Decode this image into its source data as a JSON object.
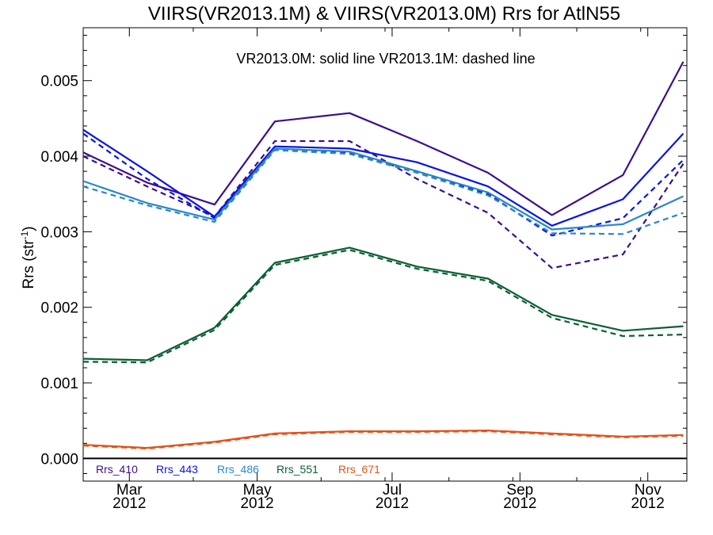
{
  "chart_data": {
    "type": "line",
    "title": "VIIRS(VR2013.1M) & VIIRS(VR2013.0M)  Rrs for AtlN55",
    "annotation": "VR2013.0M: solid line   VR2013.1M: dashed line",
    "ylabel": "Rrs (str",
    "ylabel_sup": "-1",
    "ylabel_close": ")",
    "xlabel": "",
    "xlim": [
      2012.12,
      2012.97
    ],
    "ylim": [
      -0.0003,
      0.0057
    ],
    "yticks": [
      {
        "v": 0.0,
        "label": "0.000"
      },
      {
        "v": 0.001,
        "label": "0.001"
      },
      {
        "v": 0.002,
        "label": "0.002"
      },
      {
        "v": 0.003,
        "label": "0.003"
      },
      {
        "v": 0.004,
        "label": "0.004"
      },
      {
        "v": 0.005,
        "label": "0.005"
      }
    ],
    "xticks": [
      {
        "v": 2012.185,
        "month": "Mar",
        "year": "2012"
      },
      {
        "v": 2012.365,
        "month": "May",
        "year": "2012"
      },
      {
        "v": 2012.555,
        "month": "Jul",
        "year": "2012"
      },
      {
        "v": 2012.735,
        "month": "Sep",
        "year": "2012"
      },
      {
        "v": 2012.915,
        "month": "Nov",
        "year": "2012"
      }
    ],
    "zero_line": 0.0,
    "x": [
      2012.12,
      2012.21,
      2012.305,
      2012.39,
      2012.495,
      2012.59,
      2012.69,
      2012.78,
      2012.88,
      2012.965
    ],
    "series": [
      {
        "name": "Rrs_410",
        "color": "#3b0f8c",
        "style": "solid",
        "values": [
          0.00405,
          0.00365,
          0.00336,
          0.00446,
          0.00457,
          0.0042,
          0.00378,
          0.00322,
          0.00375,
          0.00525
        ]
      },
      {
        "name": "Rrs_410",
        "color": "#3b0f8c",
        "style": "dashed",
        "values": [
          0.004,
          0.0036,
          0.0032,
          0.0042,
          0.0042,
          0.0037,
          0.00325,
          0.00252,
          0.0027,
          0.0039
        ]
      },
      {
        "name": "Rrs_443",
        "color": "#0a14e6",
        "style": "solid",
        "values": [
          0.00435,
          0.0038,
          0.0032,
          0.00413,
          0.0041,
          0.00392,
          0.0036,
          0.00308,
          0.00343,
          0.0043
        ]
      },
      {
        "name": "Rrs_443",
        "color": "#0a14e6",
        "style": "dashed",
        "values": [
          0.0043,
          0.0037,
          0.00318,
          0.0041,
          0.00405,
          0.0038,
          0.0035,
          0.00295,
          0.00318,
          0.00395
        ]
      },
      {
        "name": "Rrs_486",
        "color": "#2c86c8",
        "style": "solid",
        "values": [
          0.00367,
          0.00338,
          0.00316,
          0.0041,
          0.00406,
          0.0038,
          0.00352,
          0.00303,
          0.0031,
          0.00347
        ]
      },
      {
        "name": "Rrs_486",
        "color": "#2c86c8",
        "style": "dashed",
        "values": [
          0.0036,
          0.00335,
          0.00313,
          0.00408,
          0.00403,
          0.00378,
          0.00348,
          0.00298,
          0.00297,
          0.00325
        ]
      },
      {
        "name": "Rrs_551",
        "color": "#0b5f32",
        "style": "solid",
        "values": [
          0.00132,
          0.0013,
          0.00173,
          0.00259,
          0.00279,
          0.00254,
          0.00238,
          0.0019,
          0.00169,
          0.00175
        ]
      },
      {
        "name": "Rrs_551",
        "color": "#0b5f32",
        "style": "dashed",
        "values": [
          0.00128,
          0.00127,
          0.0017,
          0.00256,
          0.00276,
          0.00251,
          0.00235,
          0.00186,
          0.00162,
          0.00164
        ]
      },
      {
        "name": "Rrs_671",
        "color": "#e2531b",
        "style": "solid",
        "values": [
          0.00018,
          0.00014,
          0.00022,
          0.00033,
          0.00036,
          0.00036,
          0.00037,
          0.00033,
          0.00029,
          0.00031
        ]
      },
      {
        "name": "Rrs_671",
        "color": "#e2531b",
        "style": "dashed",
        "values": [
          0.00017,
          0.00013,
          0.00021,
          0.00032,
          0.00035,
          0.00035,
          0.00036,
          0.00032,
          0.00028,
          0.0003
        ]
      }
    ],
    "legend": [
      {
        "label": "Rrs_410",
        "color": "#3b0f8c"
      },
      {
        "label": "Rrs_443",
        "color": "#0a14e6"
      },
      {
        "label": "Rrs_486",
        "color": "#2c86c8"
      },
      {
        "label": "Rrs_551",
        "color": "#0b5f32"
      },
      {
        "label": "Rrs_671",
        "color": "#e2531b"
      }
    ],
    "legend_position": "bottom-left inside"
  }
}
